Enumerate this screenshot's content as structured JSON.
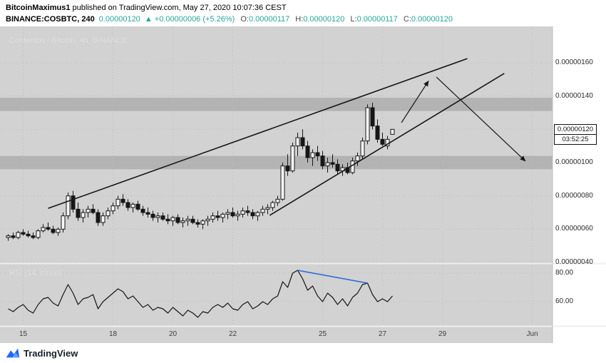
{
  "header": {
    "line1_author": "BitcoinMaximus1",
    "line1_rest": " published on TradingView.com, May 27, 2020 10:07:36 CEST",
    "symbol": "BINANCE:COSBTC, 240",
    "last_price": "0.00000120",
    "up_arrow": "▲",
    "change": "+0.00000006 (+5.26%)",
    "o_label": "O:",
    "open": "0.00000117",
    "h_label": "H:",
    "high": "0.00000120",
    "l_label": "L:",
    "low": "0.00000117",
    "c_label": "C:",
    "close": "0.00000120"
  },
  "price_scale": {
    "last_price_label": "0.00000120",
    "countdown": "03:52:25"
  },
  "footer": {
    "brand": "TradingView"
  },
  "colors": {
    "accent_teal": "#26a69a",
    "pane_bg": "#d2d2d2",
    "zone_gray": "#b3b3b3",
    "grid": "#bcbcbc",
    "line_black": "#161616",
    "candle_up": "#f7f7f7",
    "candle_down": "#161616",
    "rsi_trend_blue": "#2e6bd6",
    "axis_bg": "#ffffff"
  },
  "chart_data": [
    {
      "type": "candlestick",
      "title": "Contentos / Bitcoin, 4h, BINANCE",
      "scale_note": "price values in 1e-8 BTC",
      "y_axis": {
        "ticks": [
          {
            "label": "0.00000160",
            "v": 160
          },
          {
            "label": "0.00000140",
            "v": 140
          },
          {
            "label": "0.00000120",
            "v": 120
          },
          {
            "label": "0.00000100",
            "v": 100
          },
          {
            "label": "0.00000080",
            "v": 80
          },
          {
            "label": "0.00000060",
            "v": 60
          },
          {
            "label": "0.00000040",
            "v": 40
          }
        ]
      },
      "x_axis": {
        "ticks": [
          {
            "label": "15",
            "i": 3
          },
          {
            "label": "18",
            "i": 21
          },
          {
            "label": "20",
            "i": 33
          },
          {
            "label": "22",
            "i": 45
          },
          {
            "label": "25",
            "i": 63
          },
          {
            "label": "27",
            "i": 75
          },
          {
            "label": "29",
            "i": 87
          },
          {
            "label": "Jun",
            "i": 105
          }
        ]
      },
      "zones": [
        {
          "from": 131,
          "to": 139
        },
        {
          "from": 96,
          "to": 104
        }
      ],
      "trendlines": [
        {
          "i1": 8,
          "v1": 72.5,
          "i2": 92,
          "v2": 162.5
        },
        {
          "i1": 52.4,
          "v1": 68.3,
          "i2": 99.4,
          "v2": 153.6
        }
      ],
      "arrows": [
        {
          "i1": 78.8,
          "v1": 124,
          "i2": 84.2,
          "v2": 149
        },
        {
          "i1": 85.8,
          "v1": 151.4,
          "i2": 103.6,
          "v2": 101
        }
      ],
      "candles": [
        [
          55,
          57,
          53,
          56
        ],
        [
          56,
          58,
          54,
          55
        ],
        [
          55,
          59,
          54,
          58
        ],
        [
          58,
          60,
          56,
          57
        ],
        [
          57,
          59,
          55,
          56
        ],
        [
          56,
          58,
          54,
          55
        ],
        [
          55,
          60,
          54,
          59
        ],
        [
          59,
          63,
          58,
          61
        ],
        [
          61,
          64,
          59,
          60
        ],
        [
          60,
          62,
          57,
          58
        ],
        [
          58,
          61,
          56,
          60
        ],
        [
          60,
          70,
          58,
          68
        ],
        [
          68,
          82,
          66,
          80
        ],
        [
          80,
          83,
          70,
          72
        ],
        [
          72,
          76,
          65,
          67
        ],
        [
          67,
          72,
          64,
          70
        ],
        [
          70,
          74,
          67,
          72
        ],
        [
          72,
          75,
          69,
          70
        ],
        [
          70,
          72,
          62,
          64
        ],
        [
          64,
          70,
          62,
          68
        ],
        [
          68,
          73,
          66,
          71
        ],
        [
          71,
          76,
          69,
          74
        ],
        [
          74,
          80,
          72,
          78
        ],
        [
          78,
          81,
          74,
          76
        ],
        [
          76,
          78,
          71,
          73
        ],
        [
          73,
          76,
          70,
          75
        ],
        [
          75,
          77,
          71,
          72
        ],
        [
          72,
          74,
          68,
          70
        ],
        [
          70,
          73,
          67,
          69
        ],
        [
          69,
          71,
          65,
          67
        ],
        [
          67,
          70,
          64,
          68
        ],
        [
          68,
          70,
          65,
          66
        ],
        [
          66,
          69,
          63,
          65
        ],
        [
          65,
          68,
          62,
          67
        ],
        [
          67,
          69,
          63,
          64
        ],
        [
          64,
          67,
          61,
          65
        ],
        [
          65,
          68,
          62,
          66
        ],
        [
          66,
          68,
          63,
          64
        ],
        [
          64,
          66,
          61,
          63
        ],
        [
          63,
          66,
          60,
          65
        ],
        [
          65,
          68,
          62,
          66
        ],
        [
          66,
          70,
          64,
          68
        ],
        [
          68,
          71,
          65,
          67
        ],
        [
          67,
          70,
          64,
          69
        ],
        [
          69,
          72,
          66,
          70
        ],
        [
          70,
          73,
          67,
          68
        ],
        [
          68,
          71,
          65,
          69
        ],
        [
          69,
          73,
          67,
          71
        ],
        [
          71,
          74,
          68,
          70
        ],
        [
          70,
          72,
          66,
          68
        ],
        [
          68,
          71,
          65,
          70
        ],
        [
          70,
          74,
          68,
          72
        ],
        [
          72,
          75,
          69,
          73
        ],
        [
          73,
          77,
          71,
          76
        ],
        [
          76,
          80,
          74,
          78
        ],
        [
          78,
          100,
          77,
          98
        ],
        [
          98,
          105,
          92,
          95
        ],
        [
          95,
          112,
          94,
          110
        ],
        [
          110,
          118,
          104,
          115
        ],
        [
          115,
          120,
          108,
          110
        ],
        [
          110,
          113,
          100,
          103
        ],
        [
          103,
          108,
          98,
          106
        ],
        [
          106,
          110,
          101,
          104
        ],
        [
          104,
          107,
          96,
          98
        ],
        [
          98,
          103,
          94,
          100
        ],
        [
          100,
          105,
          97,
          99
        ],
        [
          99,
          102,
          93,
          95
        ],
        [
          95,
          99,
          92,
          97
        ],
        [
          97,
          100,
          93,
          94
        ],
        [
          94,
          103,
          93,
          101
        ],
        [
          101,
          106,
          98,
          104
        ],
        [
          104,
          115,
          102,
          113
        ],
        [
          113,
          135,
          111,
          133
        ],
        [
          133,
          136,
          120,
          122
        ],
        [
          122,
          126,
          112,
          114
        ],
        [
          114,
          118,
          110,
          111
        ],
        [
          110,
          116,
          108,
          114
        ],
        [
          117,
          120,
          117,
          120
        ]
      ]
    },
    {
      "type": "line",
      "name": "RSI (14, close)",
      "y_ticks": [
        {
          "label": "80.00",
          "v": 80
        },
        {
          "label": "60.00",
          "v": 60
        }
      ],
      "values": [
        55,
        53,
        56,
        58,
        54,
        52,
        58,
        62,
        63,
        59,
        57,
        65,
        72,
        66,
        58,
        62,
        63,
        65,
        55,
        60,
        63,
        66,
        69,
        67,
        62,
        64,
        60,
        56,
        58,
        54,
        56,
        55,
        52,
        56,
        53,
        50,
        54,
        52,
        49,
        53,
        52,
        56,
        58,
        56,
        59,
        55,
        54,
        58,
        60,
        55,
        57,
        60,
        58,
        62,
        64,
        74,
        70,
        80,
        82,
        76,
        68,
        71,
        64,
        60,
        66,
        63,
        58,
        62,
        57,
        63,
        66,
        72,
        73,
        65,
        60,
        62,
        60,
        64
      ],
      "trendline": {
        "i1": 58,
        "v1": 82,
        "i2": 72,
        "v2": 73
      }
    }
  ]
}
